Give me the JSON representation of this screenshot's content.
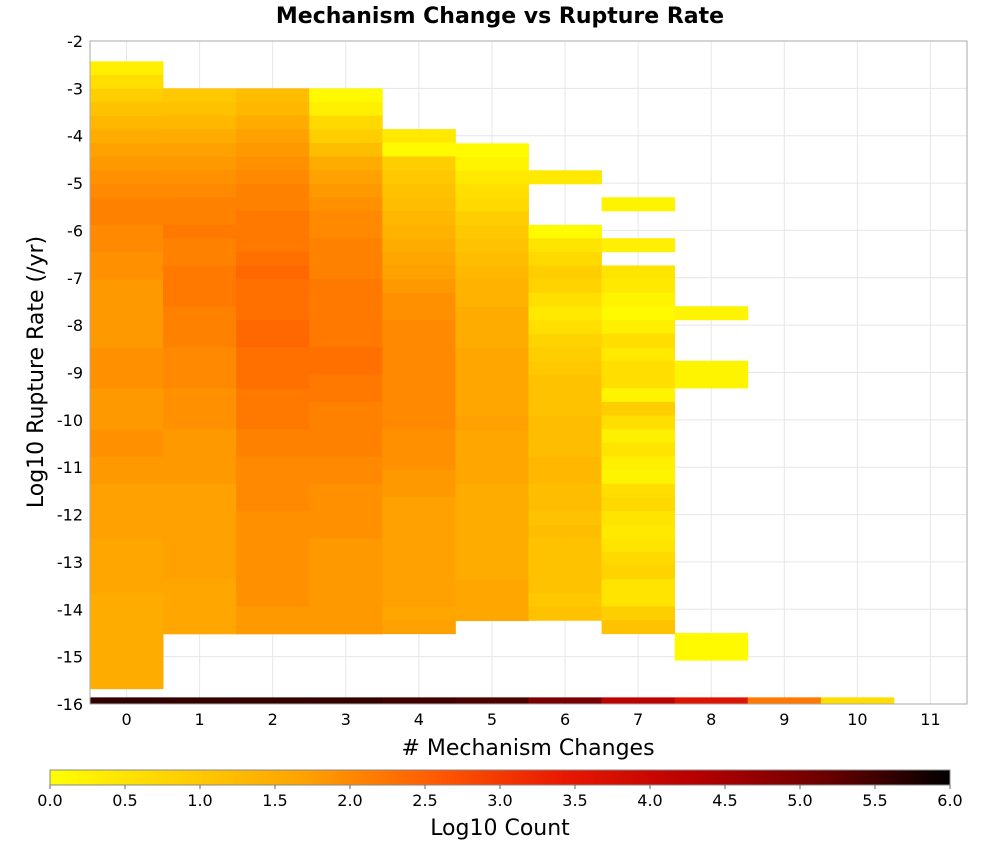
{
  "chart_data": {
    "type": "heatmap",
    "title": "Mechanism Change vs Rupture Rate",
    "xlabel": "# Mechanism Changes",
    "ylabel": "Log10 Rupture Rate (/yr)",
    "x_ticks": [
      "0",
      "1",
      "2",
      "3",
      "4",
      "5",
      "6",
      "7",
      "8",
      "9",
      "10",
      "11"
    ],
    "y_ticks": [
      "-2",
      "-3",
      "-4",
      "-5",
      "-6",
      "-7",
      "-8",
      "-9",
      "-10",
      "-11",
      "-12",
      "-13",
      "-14",
      "-15",
      "-16"
    ],
    "xlim": [
      -0.5,
      11.5
    ],
    "ylim": [
      -16,
      -2
    ],
    "y_bin_width": 0.288,
    "grid": true,
    "colorbar": {
      "label": "Log10 Count",
      "range": [
        0,
        6
      ],
      "ticks": [
        "0.0",
        "0.5",
        "1.0",
        "1.5",
        "2.0",
        "2.5",
        "3.0",
        "3.5",
        "4.0",
        "4.5",
        "5.0",
        "5.5",
        "6.0"
      ],
      "placement": "bottom",
      "colors": [
        "#ffff00",
        "#ffd000",
        "#ffa000",
        "#ff5a00",
        "#e81800",
        "#b80000",
        "#6e0000",
        "#000000"
      ]
    },
    "columns": [
      {
        "x": 0,
        "y_start": -2.43,
        "values": [
          0.3,
          0.6,
          0.9,
          1.1,
          1.3,
          1.5,
          1.7,
          1.8,
          1.9,
          2.0,
          2.1,
          2.1,
          2.0,
          2.0,
          1.9,
          1.9,
          1.8,
          1.8,
          1.8,
          1.8,
          1.8,
          1.9,
          1.9,
          1.9,
          1.8,
          1.8,
          1.8,
          1.9,
          1.9,
          1.8,
          1.8,
          1.7,
          1.7,
          1.7,
          1.7,
          1.6,
          1.6,
          1.6,
          1.6,
          1.5,
          1.5,
          1.5,
          1.5,
          1.5,
          1.5,
          1.5
        ]
      },
      {
        "x": 1,
        "y_start": -3.0,
        "values": [
          1.0,
          1.1,
          1.3,
          1.5,
          1.7,
          1.8,
          1.9,
          2.0,
          2.1,
          2.1,
          2.2,
          2.1,
          2.1,
          2.2,
          2.2,
          2.2,
          2.1,
          2.1,
          2.1,
          2.0,
          2.0,
          2.0,
          1.9,
          1.9,
          1.9,
          1.8,
          1.8,
          1.8,
          1.8,
          1.7,
          1.7,
          1.7,
          1.7,
          1.7,
          1.7,
          1.7,
          1.6,
          1.6,
          1.6,
          1.6
        ]
      },
      {
        "x": 2,
        "y_start": -3.0,
        "values": [
          1.2,
          1.3,
          1.5,
          1.7,
          1.8,
          1.9,
          2.0,
          2.1,
          2.1,
          2.2,
          2.2,
          2.2,
          2.3,
          2.4,
          2.3,
          2.3,
          2.3,
          2.4,
          2.4,
          2.3,
          2.3,
          2.3,
          2.2,
          2.2,
          2.2,
          2.1,
          2.1,
          2.0,
          2.0,
          2.0,
          2.0,
          1.9,
          1.9,
          1.9,
          1.9,
          1.9,
          1.9,
          1.9,
          1.8,
          1.8
        ]
      },
      {
        "x": 3,
        "y_start": -3.0,
        "values": [
          0.1,
          0.3,
          0.7,
          0.9,
          1.2,
          1.5,
          1.7,
          1.8,
          1.9,
          2.0,
          2.0,
          2.1,
          2.1,
          2.1,
          2.2,
          2.2,
          2.2,
          2.2,
          2.2,
          2.3,
          2.3,
          2.2,
          2.2,
          2.1,
          2.1,
          2.1,
          2.1,
          2.0,
          2.0,
          1.9,
          1.9,
          1.9,
          1.9,
          1.8,
          1.8,
          1.8,
          1.8,
          1.8,
          1.8,
          1.8
        ]
      },
      {
        "x": 4,
        "y_start": -3.86,
        "values": [
          0.4,
          0.1,
          0.9,
          1.0,
          1.1,
          1.2,
          1.3,
          1.4,
          1.5,
          1.6,
          1.7,
          1.8,
          1.9,
          1.9,
          2.0,
          2.0,
          2.0,
          2.0,
          2.0,
          2.0,
          2.0,
          2.0,
          1.9,
          1.9,
          1.9,
          1.8,
          1.8,
          1.7,
          1.7,
          1.7,
          1.7,
          1.7,
          1.7,
          1.7,
          1.7,
          1.6,
          1.7
        ]
      },
      {
        "x": 5,
        "y_start": -4.16,
        "values": [
          0.1,
          0.2,
          0.4,
          0.6,
          0.7,
          0.9,
          1.0,
          1.1,
          1.2,
          1.3,
          1.4,
          1.4,
          1.5,
          1.5,
          1.5,
          1.6,
          1.6,
          1.6,
          1.6,
          1.6,
          1.7,
          1.6,
          1.6,
          1.6,
          1.6,
          1.5,
          1.5,
          1.5,
          1.5,
          1.5,
          1.5,
          1.5,
          1.6,
          1.6,
          1.6
        ]
      },
      {
        "x": 6,
        "y_start": -4.73,
        "values": [
          0.4,
          null,
          null,
          null,
          0.1,
          0.5,
          0.7,
          0.9,
          0.8,
          0.6,
          0.4,
          0.6,
          0.8,
          0.9,
          1.0,
          1.1,
          1.1,
          1.1,
          1.2,
          1.2,
          1.2,
          1.3,
          1.3,
          1.2,
          1.2,
          1.1,
          1.2,
          1.1,
          1.1,
          1.1,
          1.1,
          1.0,
          1.1
        ]
      },
      {
        "x": 7,
        "y_start": -5.3,
        "values": [
          0.2,
          null,
          null,
          0.3,
          null,
          0.5,
          0.4,
          0.2,
          0.1,
          0.3,
          0.6,
          0.4,
          0.6,
          0.6,
          0.2,
          0.9,
          0.6,
          0.3,
          0.5,
          0.3,
          0.2,
          0.6,
          0.7,
          0.5,
          0.4,
          0.5,
          0.7,
          0.8,
          0.5,
          0.5,
          0.9,
          1.1
        ]
      },
      {
        "x": 8,
        "y_start": -7.6,
        "values": [
          0.2,
          null,
          null,
          null,
          0.2,
          0.2
        ]
      },
      {
        "x": 8,
        "y_start": -14.5,
        "values": [
          0.1,
          0.1
        ]
      },
      {
        "x": 0,
        "y_start": -15.86,
        "values": [
          5.6
        ]
      },
      {
        "x": 1,
        "y_start": -15.86,
        "values": [
          5.6
        ]
      },
      {
        "x": 2,
        "y_start": -15.86,
        "values": [
          5.6
        ]
      },
      {
        "x": 3,
        "y_start": -15.86,
        "values": [
          5.6
        ]
      },
      {
        "x": 4,
        "y_start": -15.86,
        "values": [
          5.5
        ]
      },
      {
        "x": 5,
        "y_start": -15.86,
        "values": [
          5.4
        ]
      },
      {
        "x": 6,
        "y_start": -15.86,
        "values": [
          5.0
        ]
      },
      {
        "x": 7,
        "y_start": -15.86,
        "values": [
          4.2
        ]
      },
      {
        "x": 8,
        "y_start": -15.86,
        "values": [
          3.6
        ]
      },
      {
        "x": 9,
        "y_start": -15.86,
        "values": [
          2.2
        ]
      },
      {
        "x": 10,
        "y_start": -15.86,
        "values": [
          0.6
        ]
      }
    ]
  }
}
